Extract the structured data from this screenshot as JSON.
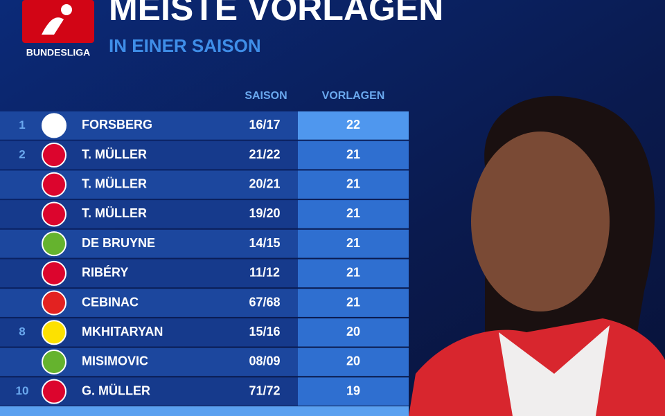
{
  "header": {
    "title": "MEISTE VORLAGEN",
    "subtitle": "IN EINER SAISON",
    "logo_text": "BUNDESLIGA"
  },
  "table": {
    "columns": [
      "SAISON",
      "VORLAGEN"
    ],
    "rows": [
      {
        "rank": "1",
        "player": "FORSBERG",
        "season": "16/17",
        "assists": "22"
      },
      {
        "rank": "2",
        "player": "T. MÜLLER",
        "season": "21/22",
        "assists": "21"
      },
      {
        "rank": null,
        "player": "T. MÜLLER",
        "season": "20/21",
        "assists": "21"
      },
      {
        "rank": null,
        "player": "T. MÜLLER",
        "season": "19/20",
        "assists": "21"
      },
      {
        "rank": null,
        "player": "DE BRUYNE",
        "season": "14/15",
        "assists": "21"
      },
      {
        "rank": null,
        "player": "RIBÉRY",
        "season": "11/12",
        "assists": "21"
      },
      {
        "rank": null,
        "player": "CEBINAC",
        "season": "67/68",
        "assists": "21"
      },
      {
        "rank": "8",
        "player": "MKHITARYAN",
        "season": "15/16",
        "assists": "20"
      },
      {
        "rank": null,
        "player": "MISIMOVIC",
        "season": "08/09",
        "assists": "20"
      },
      {
        "rank": "10",
        "player": "G. MÜLLER",
        "season": "71/72",
        "assists": "19"
      }
    ]
  }
}
